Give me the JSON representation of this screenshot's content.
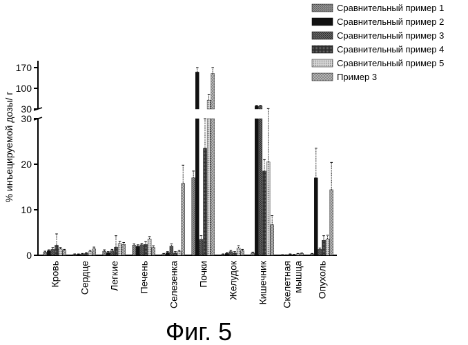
{
  "caption": "Фиг. 5",
  "chart_data": {
    "type": "bar",
    "ylabel": "% инъецируемой дозы/ г",
    "axis_break": {
      "lower_range": [
        0,
        30
      ],
      "upper_range": [
        30,
        170
      ]
    },
    "lower_ticks": [
      "0",
      "10",
      "20",
      "30"
    ],
    "upper_ticks": [
      "30",
      "100",
      "170"
    ],
    "categories": [
      "Кровь",
      "Сердце",
      "Легкие",
      "Печень",
      "Селезенка",
      "Почки",
      "Желудок",
      "Кишечник",
      "Скелетная мышца",
      "Опухоль"
    ],
    "category_lines": [
      [
        "Кровь"
      ],
      [
        "Сердце"
      ],
      [
        "Легкие"
      ],
      [
        "Печень"
      ],
      [
        "Селезенка"
      ],
      [
        "Почки"
      ],
      [
        "Желудок"
      ],
      [
        "Кишечник"
      ],
      [
        "Скелетная",
        "мышца"
      ],
      [
        "Опухоль"
      ]
    ],
    "series": [
      {
        "name": "Сравнительный пример 1",
        "values": [
          0.7,
          0.2,
          0.9,
          2.2,
          0.3,
          17.0,
          0.2,
          0.5,
          0.1,
          0.3
        ],
        "errors": [
          0.2,
          0.1,
          0.3,
          0.3,
          0.1,
          1.5,
          0.1,
          0.2,
          0.05,
          0.1
        ],
        "color": "#808080",
        "pattern": "hatch-light"
      },
      {
        "name": "Сравнительный пример 2",
        "values": [
          1.0,
          0.2,
          0.6,
          2.0,
          0.6,
          155.0,
          0.4,
          40.0,
          0.05,
          17.0
        ],
        "errors": [
          0.2,
          0.1,
          0.2,
          0.3,
          0.2,
          15.0,
          0.2,
          2.0,
          0.05,
          6.5
        ],
        "color": "#111111",
        "pattern": "solid"
      },
      {
        "name": "Сравнительный пример 3",
        "values": [
          1.3,
          0.3,
          1.0,
          2.3,
          2.0,
          3.5,
          0.8,
          40.0,
          0.2,
          1.3
        ],
        "errors": [
          0.4,
          0.1,
          0.3,
          0.3,
          0.5,
          0.8,
          0.3,
          2.0,
          0.1,
          0.3
        ],
        "color": "#5a5a5a",
        "pattern": "hatch-dark"
      },
      {
        "name": "Сравнительный пример 4",
        "values": [
          2.2,
          0.4,
          1.8,
          2.4,
          0.5,
          23.5,
          0.5,
          18.5,
          0.1,
          3.3
        ],
        "errors": [
          2.5,
          0.2,
          2.5,
          0.6,
          0.3,
          6.5,
          0.3,
          2.5,
          0.1,
          1.0
        ],
        "color": "#333333",
        "pattern": "hatch-dense"
      },
      {
        "name": "Сравнительный пример 5",
        "values": [
          1.4,
          0.8,
          2.6,
          3.6,
          0.8,
          60.0,
          1.6,
          20.5,
          0.3,
          3.6
        ],
        "errors": [
          0.3,
          0.3,
          0.5,
          0.5,
          0.3,
          20.0,
          0.5,
          11.0,
          0.1,
          0.8
        ],
        "color": "#c0c0c0",
        "pattern": "dots"
      },
      {
        "name": "Пример 3",
        "values": [
          1.1,
          1.4,
          2.4,
          1.7,
          15.8,
          150.0,
          1.0,
          6.7,
          0.4,
          14.4
        ],
        "errors": [
          0.2,
          0.4,
          0.4,
          0.4,
          4.0,
          25.0,
          0.3,
          2.0,
          0.1,
          6.0
        ],
        "color": "#a8a8a8",
        "pattern": "hatch-cross"
      }
    ]
  }
}
